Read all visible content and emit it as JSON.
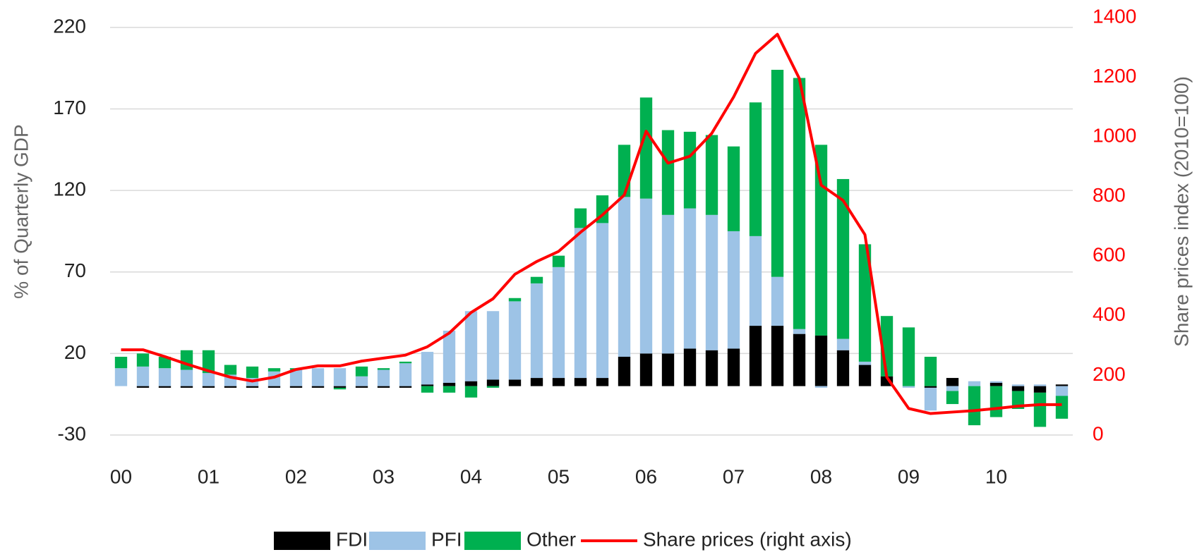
{
  "chart_data": {
    "type": "stacked-bar-line",
    "categories": [
      "00",
      null,
      null,
      null,
      "01",
      null,
      null,
      null,
      "02",
      null,
      null,
      null,
      "03",
      null,
      null,
      null,
      "04",
      null,
      null,
      null,
      "05",
      null,
      null,
      null,
      "06",
      null,
      null,
      null,
      "07",
      null,
      null,
      null,
      "08",
      null,
      null,
      null,
      "09",
      null,
      null,
      null,
      "10",
      null,
      null,
      null
    ],
    "series": [
      {
        "name": "FDI",
        "color": "#000000",
        "values": [
          0,
          -1,
          -1,
          -1,
          -1,
          -1,
          -1,
          -1,
          -1,
          -1,
          -1,
          -1,
          -1,
          -1,
          1,
          2,
          3,
          4,
          4,
          5,
          5,
          5,
          5,
          18,
          20,
          20,
          23,
          22,
          23,
          37,
          37,
          32,
          31,
          22,
          13,
          6,
          0,
          -1,
          5,
          0,
          2,
          -3,
          -4,
          1
        ]
      },
      {
        "name": "PFI",
        "color": "#9dc3e6",
        "values": [
          11,
          12,
          11,
          10,
          8,
          7,
          5,
          9,
          10,
          11,
          11,
          6,
          10,
          14,
          20,
          32,
          43,
          42,
          48,
          58,
          68,
          92,
          95,
          98,
          95,
          85,
          86,
          83,
          72,
          55,
          30,
          3,
          -1,
          7,
          2,
          0,
          -1,
          -14,
          -3,
          3,
          1,
          1,
          1,
          -6
        ]
      },
      {
        "name": "Other",
        "color": "#00b050",
        "values": [
          7,
          8,
          7,
          12,
          14,
          6,
          7,
          2,
          1,
          0,
          -1,
          6,
          1,
          1,
          -4,
          -4,
          -7,
          -1,
          2,
          4,
          7,
          12,
          17,
          32,
          62,
          52,
          47,
          49,
          52,
          82,
          127,
          154,
          117,
          98,
          72,
          37,
          36,
          18,
          -8,
          -24,
          -19,
          -11,
          -21,
          -14
        ]
      },
      {
        "name": "Share prices (right axis)",
        "color": "#ff0000",
        "axis": "y2",
        "values": [
          286,
          286,
          263,
          238,
          215,
          194,
          181,
          194,
          220,
          232,
          232,
          248,
          258,
          268,
          296,
          342,
          411,
          457,
          539,
          582,
          616,
          680,
          738,
          805,
          1019,
          912,
          935,
          1012,
          1134,
          1280,
          1344,
          1196,
          838,
          787,
          672,
          194,
          89,
          72,
          77,
          82,
          89,
          97,
          102,
          102
        ]
      }
    ],
    "ylabel": "% of Quarterly GDP",
    "y2label": "Share prices index (2010=100)",
    "ylim": [
      -30,
      226
    ],
    "yticks": [
      -30,
      20,
      70,
      120,
      170,
      220
    ],
    "y2lim": [
      0,
      1400
    ],
    "y2ticks": [
      0,
      200,
      400,
      600,
      800,
      1000,
      1200,
      1400
    ],
    "grid": true,
    "legend": "bottom"
  }
}
